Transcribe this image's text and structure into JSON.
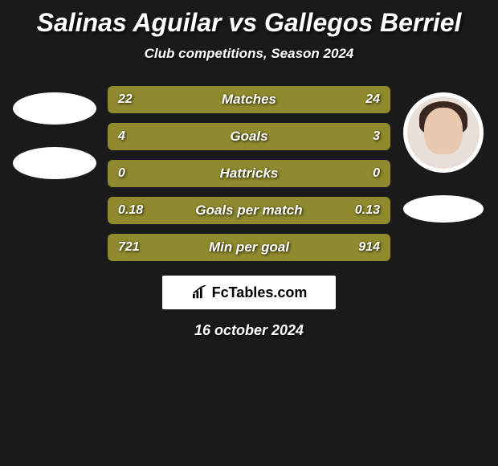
{
  "title": "Salinas Aguilar vs Gallegos Berriel",
  "subtitle": "Club competitions, Season 2024",
  "date": "16 october 2024",
  "brand": "FcTables.com",
  "colors": {
    "background": "#1a1a1a",
    "bar_fill": "#8f8a2e",
    "bar_border": "#8f8a2e",
    "bar_track": "#2b2b2b",
    "text": "#ffffff"
  },
  "stats": [
    {
      "label": "Matches",
      "left_val": "22",
      "right_val": "24",
      "left_pct": 48,
      "right_pct": 52
    },
    {
      "label": "Goals",
      "left_val": "4",
      "right_val": "3",
      "left_pct": 57,
      "right_pct": 43
    },
    {
      "label": "Hattricks",
      "left_val": "0",
      "right_val": "0",
      "left_pct": 50,
      "right_pct": 50
    },
    {
      "label": "Goals per match",
      "left_val": "0.18",
      "right_val": "0.13",
      "left_pct": 58,
      "right_pct": 42
    },
    {
      "label": "Min per goal",
      "left_val": "721",
      "right_val": "914",
      "left_pct": 44,
      "right_pct": 56
    }
  ]
}
